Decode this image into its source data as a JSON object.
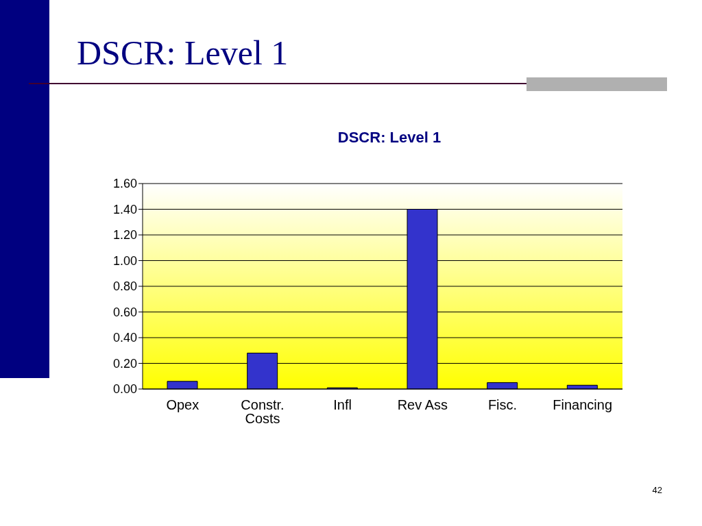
{
  "chart_data": {
    "type": "bar",
    "title": "DSCR: Level 1",
    "subtitle": "DSCR: Level 1",
    "categories": [
      "Opex",
      "Constr. Costs",
      "Infl",
      "Rev Ass",
      "Fisc.",
      "Financing"
    ],
    "values": [
      0.06,
      0.28,
      0.01,
      1.4,
      0.05,
      0.03
    ],
    "color": "#3333cc",
    "ylim": [
      0,
      1.6
    ],
    "yticks": [
      {
        "value": 0,
        "label": "0.00"
      },
      {
        "value": 0.2,
        "label": "0.20"
      },
      {
        "value": 0.4,
        "label": "0.40"
      },
      {
        "value": 0.6,
        "label": "0.60"
      },
      {
        "value": 0.8,
        "label": "0.80"
      },
      {
        "value": 1,
        "label": "1.00"
      },
      {
        "value": 1.2,
        "label": "1.20"
      },
      {
        "value": 1.4,
        "label": "1.40"
      },
      {
        "value": 1.6,
        "label": "1.60"
      }
    ],
    "grid": "y",
    "annotations": [
      "42"
    ]
  }
}
